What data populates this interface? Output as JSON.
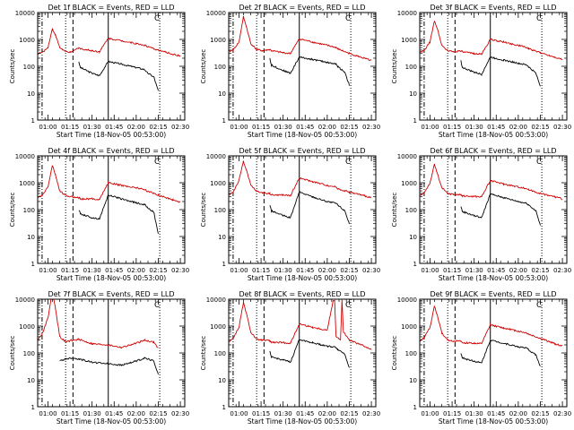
{
  "chart_data": {
    "type": "line",
    "x_unit": "UT time (HH:MM)",
    "xlim": [
      "00:53",
      "02:33"
    ],
    "x_ticks": [
      "01:00",
      "01:15",
      "01:30",
      "01:45",
      "02:00",
      "02:15",
      "02:30"
    ],
    "y_scale": "log",
    "ylim": [
      1,
      10000
    ],
    "y_ticks": [
      "1",
      "10",
      "100",
      "1000",
      "10000"
    ],
    "ylabel": "Counts/sec",
    "xlabel": "Start Time (18-Nov-05 00:53:00)",
    "vlines": [
      {
        "time": "00:56",
        "style": "dashdot"
      },
      {
        "time": "01:12",
        "style": "dotted"
      },
      {
        "time": "01:17",
        "style": "dashed"
      },
      {
        "time": "01:41",
        "style": "solid"
      },
      {
        "time": "02:16",
        "style": "dotted"
      }
    ],
    "panels": [
      {
        "title": "Det 1f BLACK = Events, RED = LLD",
        "corner_label": "C",
        "series": [
          {
            "name": "Events",
            "color": "#000000",
            "x": [
              "00:53",
              "00:58",
              "01:03",
              "01:08",
              "01:12",
              "01:16",
              "01:21",
              "01:22",
              "01:30",
              "01:35",
              "01:41",
              "01:50",
              "02:00",
              "02:06",
              "02:07",
              "02:12",
              "02:15"
            ],
            "y": [
              null,
              null,
              null,
              null,
              null,
              null,
              150,
              90,
              55,
              45,
              150,
              120,
              90,
              75,
              60,
              40,
              12
            ]
          },
          {
            "name": "LLD",
            "color": "#d00000",
            "x": [
              "00:53",
              "00:56",
              "01:00",
              "01:03",
              "01:05",
              "01:08",
              "01:12",
              "01:16",
              "01:21",
              "01:22",
              "01:30",
              "01:35",
              "01:41",
              "01:50",
              "02:00",
              "02:06",
              "02:07",
              "02:15",
              "02:25",
              "02:30"
            ],
            "y": [
              300,
              320,
              500,
              2500,
              1500,
              500,
              350,
              330,
              500,
              450,
              380,
              350,
              1100,
              900,
              700,
              600,
              550,
              400,
              280,
              240
            ]
          }
        ]
      },
      {
        "title": "Det 2f BLACK = Events, RED = LLD",
        "corner_label": "C",
        "series": [
          {
            "name": "Events",
            "color": "#000000",
            "x": [
              "00:53",
              "01:21",
              "01:22",
              "01:30",
              "01:35",
              "01:41",
              "01:50",
              "02:00",
              "02:06",
              "02:07",
              "02:12",
              "02:15"
            ],
            "y": [
              null,
              200,
              110,
              70,
              55,
              220,
              180,
              140,
              120,
              100,
              60,
              20
            ]
          },
          {
            "name": "LLD",
            "color": "#d00000",
            "x": [
              "00:53",
              "00:56",
              "01:00",
              "01:03",
              "01:05",
              "01:08",
              "01:12",
              "01:16",
              "01:21",
              "01:22",
              "01:30",
              "01:35",
              "01:41",
              "01:50",
              "02:00",
              "02:06",
              "02:07",
              "02:15",
              "02:25",
              "02:30"
            ],
            "y": [
              350,
              400,
              800,
              7000,
              3000,
              700,
              420,
              380,
              420,
              380,
              320,
              300,
              1050,
              800,
              600,
              500,
              450,
              300,
              200,
              160
            ]
          }
        ]
      },
      {
        "title": "Det 3f BLACK = Events, RED = LLD",
        "corner_label": "C",
        "series": [
          {
            "name": "Events",
            "color": "#000000",
            "x": [
              "00:53",
              "01:21",
              "01:22",
              "01:30",
              "01:35",
              "01:41",
              "01:50",
              "02:00",
              "02:06",
              "02:07",
              "02:12",
              "02:15"
            ],
            "y": [
              null,
              160,
              90,
              60,
              50,
              220,
              170,
              130,
              110,
              95,
              55,
              18
            ]
          },
          {
            "name": "LLD",
            "color": "#d00000",
            "x": [
              "00:53",
              "00:56",
              "01:00",
              "01:03",
              "01:05",
              "01:08",
              "01:12",
              "01:16",
              "01:21",
              "01:22",
              "01:30",
              "01:35",
              "01:41",
              "01:50",
              "02:00",
              "02:06",
              "02:07",
              "02:15",
              "02:25",
              "02:30"
            ],
            "y": [
              320,
              380,
              800,
              5000,
              2500,
              600,
              380,
              350,
              380,
              340,
              300,
              280,
              1000,
              800,
              600,
              500,
              450,
              320,
              220,
              180
            ]
          }
        ]
      },
      {
        "title": "Det 4f BLACK = Events, RED = LLD",
        "corner_label": "C",
        "series": [
          {
            "name": "Events",
            "color": "#000000",
            "x": [
              "00:53",
              "01:21",
              "01:22",
              "01:30",
              "01:35",
              "01:41",
              "01:50",
              "02:00",
              "02:06",
              "02:07",
              "02:12",
              "02:15"
            ],
            "y": [
              null,
              100,
              70,
              50,
              45,
              350,
              250,
              180,
              150,
              130,
              80,
              12
            ]
          },
          {
            "name": "LLD",
            "color": "#d00000",
            "x": [
              "00:53",
              "00:56",
              "01:00",
              "01:03",
              "01:05",
              "01:08",
              "01:12",
              "01:16",
              "01:21",
              "01:22",
              "01:30",
              "01:35",
              "01:41",
              "01:50",
              "02:00",
              "02:06",
              "02:07",
              "02:15",
              "02:25",
              "02:30"
            ],
            "y": [
              280,
              330,
              700,
              4500,
              2000,
              500,
              330,
              300,
              280,
              250,
              250,
              240,
              1000,
              800,
              650,
              550,
              500,
              350,
              230,
              190
            ]
          }
        ]
      },
      {
        "title": "Det 5f BLACK = Events, RED = LLD",
        "corner_label": "C",
        "series": [
          {
            "name": "Events",
            "color": "#000000",
            "x": [
              "00:53",
              "01:21",
              "01:22",
              "01:30",
              "01:35",
              "01:41",
              "01:50",
              "02:00",
              "02:06",
              "02:07",
              "02:12",
              "02:15"
            ],
            "y": [
              null,
              150,
              90,
              60,
              50,
              450,
              300,
              200,
              170,
              150,
              90,
              30
            ]
          },
          {
            "name": "LLD",
            "color": "#d00000",
            "x": [
              "00:53",
              "00:56",
              "01:00",
              "01:03",
              "01:05",
              "01:08",
              "01:12",
              "01:16",
              "01:21",
              "01:22",
              "01:30",
              "01:35",
              "01:41",
              "01:50",
              "02:00",
              "02:06",
              "02:07",
              "02:15",
              "02:25",
              "02:30"
            ],
            "y": [
              350,
              450,
              1200,
              6500,
              3000,
              800,
              480,
              420,
              400,
              350,
              350,
              330,
              1500,
              1100,
              800,
              700,
              600,
              450,
              330,
              280
            ]
          }
        ]
      },
      {
        "title": "Det 6f BLACK = Events, RED = LLD",
        "corner_label": "C",
        "series": [
          {
            "name": "Events",
            "color": "#000000",
            "x": [
              "00:53",
              "01:21",
              "01:22",
              "01:30",
              "01:35",
              "01:41",
              "01:50",
              "02:00",
              "02:06",
              "02:07",
              "02:12",
              "02:15"
            ],
            "y": [
              null,
              130,
              85,
              60,
              50,
              380,
              280,
              200,
              170,
              150,
              90,
              25
            ]
          },
          {
            "name": "LLD",
            "color": "#d00000",
            "x": [
              "00:53",
              "00:56",
              "01:00",
              "01:03",
              "01:05",
              "01:08",
              "01:12",
              "01:16",
              "01:21",
              "01:22",
              "01:30",
              "01:35",
              "01:41",
              "01:50",
              "02:00",
              "02:06",
              "02:07",
              "02:15",
              "02:25",
              "02:30"
            ],
            "y": [
              320,
              420,
              1000,
              4800,
              2200,
              650,
              400,
              370,
              360,
              320,
              310,
              300,
              1200,
              900,
              700,
              600,
              550,
              400,
              300,
              250
            ]
          }
        ]
      },
      {
        "title": "Det 7f BLACK = Events, RED = LLD",
        "corner_label": "C",
        "series": [
          {
            "name": "Events",
            "color": "#000000",
            "x": [
              "00:53",
              "01:03",
              "01:08",
              "01:12",
              "01:16",
              "01:21",
              "01:30",
              "01:41",
              "01:50",
              "02:00",
              "02:06",
              "02:12",
              "02:15"
            ],
            "y": [
              null,
              null,
              50,
              60,
              65,
              60,
              45,
              40,
              35,
              50,
              65,
              50,
              15
            ]
          },
          {
            "name": "LLD",
            "color": "#d00000",
            "x": [
              "00:53",
              "00:56",
              "01:00",
              "01:03",
              "01:05",
              "01:08",
              "01:12",
              "01:16",
              "01:21",
              "01:30",
              "01:41",
              "01:50",
              "02:00",
              "02:06",
              "02:12",
              "02:15"
            ],
            "y": [
              300,
              500,
              2000,
              20000,
              5000,
              400,
              260,
              290,
              320,
              220,
              200,
              160,
              230,
              300,
              250,
              150
            ]
          }
        ]
      },
      {
        "title": "Det 8f BLACK = Events, RED = LLD",
        "corner_label": "C",
        "series": [
          {
            "name": "Events",
            "color": "#000000",
            "x": [
              "00:53",
              "01:21",
              "01:22",
              "01:30",
              "01:35",
              "01:41",
              "01:50",
              "02:00",
              "02:06",
              "02:07",
              "02:12",
              "02:15"
            ],
            "y": [
              null,
              110,
              70,
              55,
              45,
              320,
              240,
              180,
              160,
              140,
              90,
              28
            ]
          },
          {
            "name": "LLD",
            "color": "#d00000",
            "x": [
              "00:53",
              "00:56",
              "01:00",
              "01:03",
              "01:05",
              "01:08",
              "01:12",
              "01:16",
              "01:21",
              "01:22",
              "01:30",
              "01:35",
              "01:41",
              "01:50",
              "02:00",
              "02:04",
              "02:05",
              "02:06",
              "02:09",
              "02:10",
              "02:11",
              "02:15",
              "02:25",
              "02:30"
            ],
            "y": [
              260,
              350,
              900,
              7500,
              3000,
              600,
              320,
              300,
              280,
              250,
              240,
              230,
              1200,
              900,
              700,
              9000,
              9000,
              400,
              300,
              9000,
              600,
              300,
              180,
              140
            ]
          }
        ]
      },
      {
        "title": "Det 9f BLACK = Events, RED = LLD",
        "corner_label": "C",
        "series": [
          {
            "name": "Events",
            "color": "#000000",
            "x": [
              "00:53",
              "01:21",
              "01:22",
              "01:30",
              "01:35",
              "01:41",
              "01:50",
              "02:00",
              "02:06",
              "02:07",
              "02:12",
              "02:15"
            ],
            "y": [
              null,
              100,
              65,
              50,
              42,
              300,
              230,
              170,
              150,
              130,
              85,
              30
            ]
          },
          {
            "name": "LLD",
            "color": "#d00000",
            "x": [
              "00:53",
              "00:56",
              "01:00",
              "01:03",
              "01:05",
              "01:08",
              "01:12",
              "01:16",
              "01:21",
              "01:22",
              "01:30",
              "01:35",
              "01:41",
              "01:50",
              "02:00",
              "02:06",
              "02:07",
              "02:15",
              "02:25",
              "02:30"
            ],
            "y": [
              270,
              370,
              900,
              5500,
              2500,
              550,
              300,
              280,
              270,
              240,
              230,
              220,
              1100,
              850,
              650,
              550,
              500,
              350,
              220,
              180
            ]
          }
        ]
      }
    ]
  }
}
